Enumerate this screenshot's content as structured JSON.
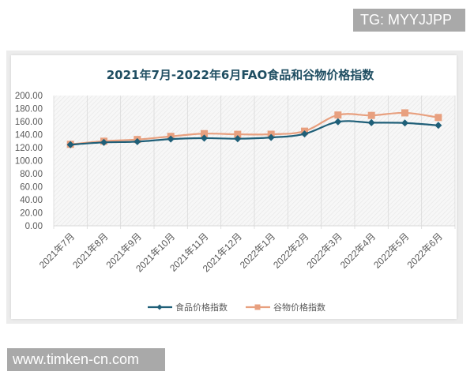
{
  "watermarks": {
    "top": "TG: MYYJJPP",
    "bottom": "www.timken-cn.com"
  },
  "colors": {
    "food": "#1f5f78",
    "cereal": "#e8a07f",
    "title": "#1f4e62",
    "axis_text": "#595959"
  },
  "chart_data": {
    "type": "line",
    "title": "2021年7月-2022年6月FAO食品和谷物价格指数",
    "xlabel": "",
    "ylabel": "",
    "ylim": [
      0,
      200
    ],
    "yticks": [
      "0.00",
      "20.00",
      "40.00",
      "60.00",
      "80.00",
      "100.00",
      "120.00",
      "140.00",
      "160.00",
      "180.00",
      "200.00"
    ],
    "grid": "vertical gridlines, hatched plot background",
    "legend_position": "bottom",
    "categories": [
      "2021年7月",
      "2021年8月",
      "2021年9月",
      "2021年10月",
      "2021年11月",
      "2021年12月",
      "2022年1月",
      "2022年2月",
      "2022年3月",
      "2022年4月",
      "2022年5月",
      "2022年6月"
    ],
    "series": [
      {
        "name": "食品价格指数",
        "marker": "diamond",
        "color": "#1f5f78",
        "values": [
          124.6,
          128.0,
          129.2,
          133.2,
          134.6,
          133.7,
          135.6,
          141.1,
          159.7,
          158.4,
          157.9,
          154.2
        ]
      },
      {
        "name": "谷物价格指数",
        "marker": "square",
        "color": "#e8a07f",
        "values": [
          125.1,
          129.9,
          132.5,
          137.3,
          141.5,
          140.5,
          140.6,
          145.3,
          170.1,
          169.5,
          173.4,
          166.3
        ]
      }
    ]
  }
}
